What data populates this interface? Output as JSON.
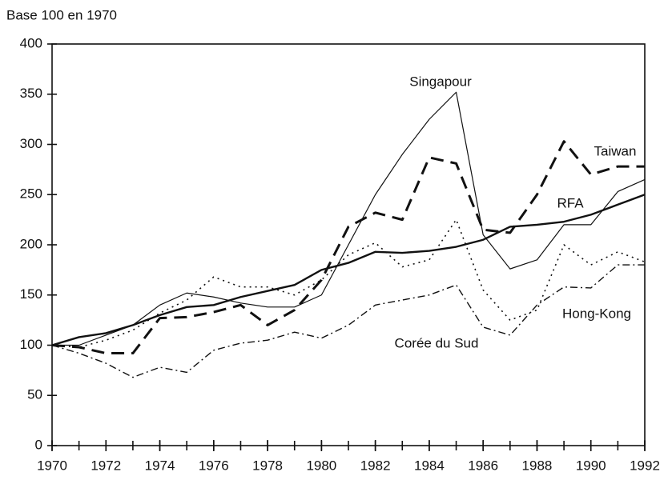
{
  "chart_data": {
    "type": "line",
    "y_label": "Base 100 en 1970",
    "x": [
      1970,
      1971,
      1972,
      1973,
      1974,
      1975,
      1976,
      1977,
      1978,
      1979,
      1980,
      1981,
      1982,
      1983,
      1984,
      1985,
      1986,
      1987,
      1988,
      1989,
      1990,
      1991,
      1992
    ],
    "series": [
      {
        "name": "Singapour",
        "color": "#111111",
        "values": [
          100,
          100,
          110,
          120,
          140,
          152,
          148,
          142,
          138,
          138,
          150,
          200,
          250,
          290,
          325,
          352,
          210,
          176,
          185,
          220,
          220,
          253,
          265
        ]
      },
      {
        "name": "RFA",
        "color": "#111111",
        "values": [
          100,
          108,
          112,
          120,
          130,
          138,
          140,
          148,
          154,
          160,
          175,
          182,
          193,
          192,
          194,
          198,
          205,
          218,
          220,
          223,
          230,
          240,
          250
        ]
      },
      {
        "name": "Taiwan",
        "color": "#111111",
        "values": [
          100,
          98,
          92,
          92,
          127,
          128,
          133,
          140,
          120,
          135,
          165,
          218,
          232,
          225,
          287,
          281,
          215,
          212,
          250,
          303,
          270,
          278,
          278
        ]
      },
      {
        "name": "Hong-Kong",
        "color": "#111111",
        "values": [
          100,
          98,
          105,
          115,
          132,
          145,
          168,
          158,
          158,
          150,
          165,
          190,
          202,
          178,
          185,
          225,
          155,
          125,
          135,
          200,
          180,
          193,
          183
        ]
      },
      {
        "name": "Corée du Sud",
        "color": "#111111",
        "values": [
          100,
          92,
          82,
          68,
          78,
          73,
          95,
          102,
          105,
          113,
          107,
          120,
          140,
          145,
          150,
          160,
          118,
          110,
          140,
          158,
          157,
          180,
          180
        ]
      }
    ],
    "xlim": [
      1970,
      1992
    ],
    "xticks": [
      1970,
      1972,
      1974,
      1976,
      1978,
      1980,
      1982,
      1984,
      1986,
      1988,
      1990,
      1992
    ],
    "ylim": [
      0,
      400
    ],
    "yticks": [
      0,
      50,
      100,
      150,
      200,
      250,
      300,
      350,
      400
    ],
    "grid": false
  }
}
